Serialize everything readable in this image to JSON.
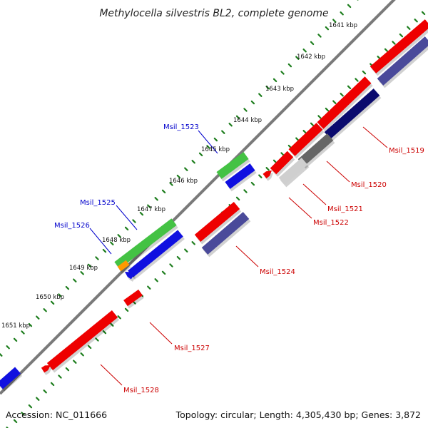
{
  "title": "Methylocella silvestris BL2, complete genome",
  "footer": {
    "accession": "Accession: NC_011666",
    "summary": "Topology: circular; Length: 4,305,430 bp; Genes: 3,872"
  },
  "colors": {
    "backbone": "#7a7a7a",
    "tick_green": "#1d7d1d",
    "cds_forward": "#ee0000",
    "cds_forward_dark": "#7a0000",
    "cds_reverse": "#1010e0",
    "match_navy": "#0b0b6e",
    "match_slate": "#4a4a9a",
    "match_green": "#44c244",
    "match_gray": "#666666",
    "match_lightgray": "#cfcfcf",
    "match_orange": "#ff9900",
    "label_blue": "#0000cc",
    "label_red": "#cc0000"
  },
  "kbp_labels": [
    "1641 kbp",
    "1642 kbp",
    "1643 kbp",
    "1644 kbp",
    "1645 kbp",
    "1646 kbp",
    "1647 kbp",
    "1648 kbp",
    "1649 kbp",
    "1650 kbp",
    "1651 kbp"
  ],
  "gene_labels": [
    {
      "text": "Msil_1519",
      "strand": "forward"
    },
    {
      "text": "Msil_1520",
      "strand": "forward"
    },
    {
      "text": "Msil_1521",
      "strand": "forward"
    },
    {
      "text": "Msil_1522",
      "strand": "forward"
    },
    {
      "text": "Msil_1523",
      "strand": "reverse"
    },
    {
      "text": "Msil_1524",
      "strand": "forward"
    },
    {
      "text": "Msil_1525",
      "strand": "reverse"
    },
    {
      "text": "Msil_1526",
      "strand": "reverse"
    },
    {
      "text": "Msil_1527",
      "strand": "forward"
    },
    {
      "text": "Msil_1528",
      "strand": "forward"
    }
  ]
}
